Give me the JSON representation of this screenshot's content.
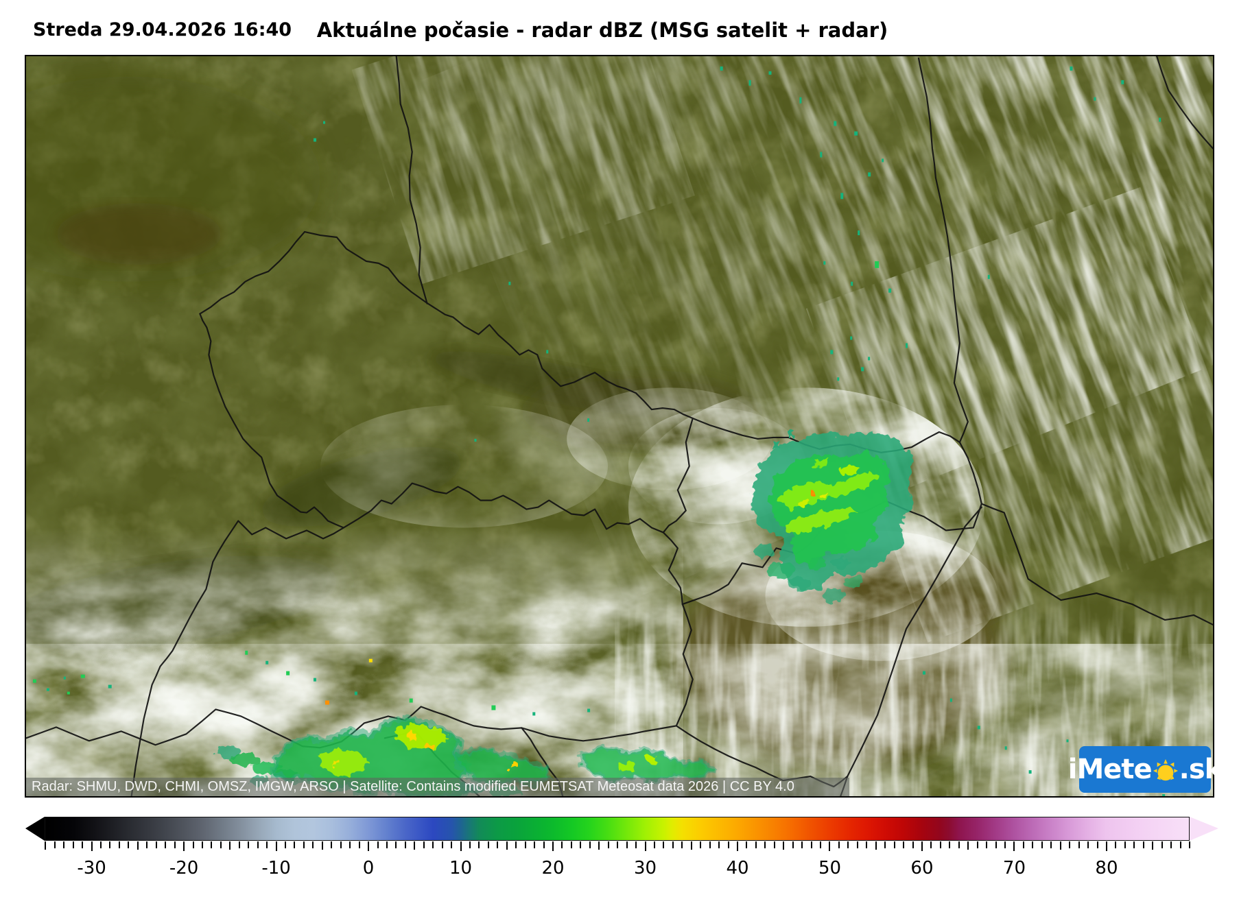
{
  "header": {
    "datetime": "Streda 29.04.2026 16:40",
    "title": "Aktuálne počasie - radar dBZ (MSG satelit + radar)"
  },
  "map": {
    "attribution": "Radar: SHMU, DWD, CHMI, OMSZ, IMGW, ARSO | Satellite: Contains modified EUMETSAT Meteosat data 2026 | CC BY 4.0",
    "logo": {
      "prefix": "iMete",
      "suffix": ".sk",
      "bg_color": "#1a78d2",
      "sun_color": "#ffcf1e"
    }
  },
  "colorbar": {
    "unit": "dBZ",
    "min": -35.1,
    "max": 89,
    "tick_labels": [
      -30,
      -20,
      -10,
      0,
      10,
      20,
      30,
      40,
      50,
      60,
      70,
      80
    ],
    "stops": [
      [
        -35,
        "#000000"
      ],
      [
        -32,
        "#050508"
      ],
      [
        -30,
        "#101014"
      ],
      [
        -28,
        "#1c1d22"
      ],
      [
        -26,
        "#292b31"
      ],
      [
        -24,
        "#35383f"
      ],
      [
        -22,
        "#42464e"
      ],
      [
        -20,
        "#50555e"
      ],
      [
        -18,
        "#5f6570"
      ],
      [
        -16,
        "#707a86"
      ],
      [
        -14,
        "#828e9c"
      ],
      [
        -12,
        "#96a6b6"
      ],
      [
        -10,
        "#a6bace"
      ],
      [
        -8,
        "#b0c4da"
      ],
      [
        -6,
        "#b2c6de"
      ],
      [
        -4,
        "#a8bedd"
      ],
      [
        -2,
        "#96aeda"
      ],
      [
        0,
        "#7e98d6"
      ],
      [
        2,
        "#6280ce"
      ],
      [
        4,
        "#4a66c8"
      ],
      [
        6,
        "#3552c4"
      ],
      [
        7,
        "#2c48c0"
      ],
      [
        9,
        "#2654ac"
      ],
      [
        10,
        "#1e6492"
      ],
      [
        11,
        "#187874"
      ],
      [
        12,
        "#128a58"
      ],
      [
        14,
        "#0c9a46"
      ],
      [
        16,
        "#0aa23c"
      ],
      [
        18,
        "#0aae34"
      ],
      [
        20,
        "#0cba2c"
      ],
      [
        22,
        "#14c824"
      ],
      [
        24,
        "#26d41c"
      ],
      [
        26,
        "#48de12"
      ],
      [
        28,
        "#74e80a"
      ],
      [
        30,
        "#a0f004"
      ],
      [
        32,
        "#c8f200"
      ],
      [
        33,
        "#e2ec00"
      ],
      [
        34,
        "#f4e000"
      ],
      [
        36,
        "#fccc00"
      ],
      [
        38,
        "#fcba00"
      ],
      [
        40,
        "#fca800"
      ],
      [
        42,
        "#fa9400"
      ],
      [
        44,
        "#f88000"
      ],
      [
        46,
        "#f66a00"
      ],
      [
        48,
        "#f05200"
      ],
      [
        50,
        "#ec3c00"
      ],
      [
        52,
        "#e62800"
      ],
      [
        54,
        "#de1802"
      ],
      [
        56,
        "#d00c04"
      ],
      [
        58,
        "#be0606"
      ],
      [
        60,
        "#a6040e"
      ],
      [
        62,
        "#92061e"
      ],
      [
        63,
        "#8c0c30"
      ],
      [
        64,
        "#8e144c"
      ],
      [
        66,
        "#962468"
      ],
      [
        68,
        "#a23a86"
      ],
      [
        70,
        "#ae52a0"
      ],
      [
        72,
        "#bc6ab6"
      ],
      [
        74,
        "#ca82c8"
      ],
      [
        76,
        "#d89ad8"
      ],
      [
        78,
        "#e4b0e4"
      ],
      [
        80,
        "#eec4ee"
      ],
      [
        84,
        "#f4d2f4"
      ],
      [
        89,
        "#f8e0f8"
      ]
    ]
  },
  "colors": {
    "terrain_olive": "#535a1f",
    "radar_teal": "#2aa878",
    "radar_green": "#1eb44c",
    "radar_bright": "#9cf00a",
    "border_line": "#121212"
  }
}
